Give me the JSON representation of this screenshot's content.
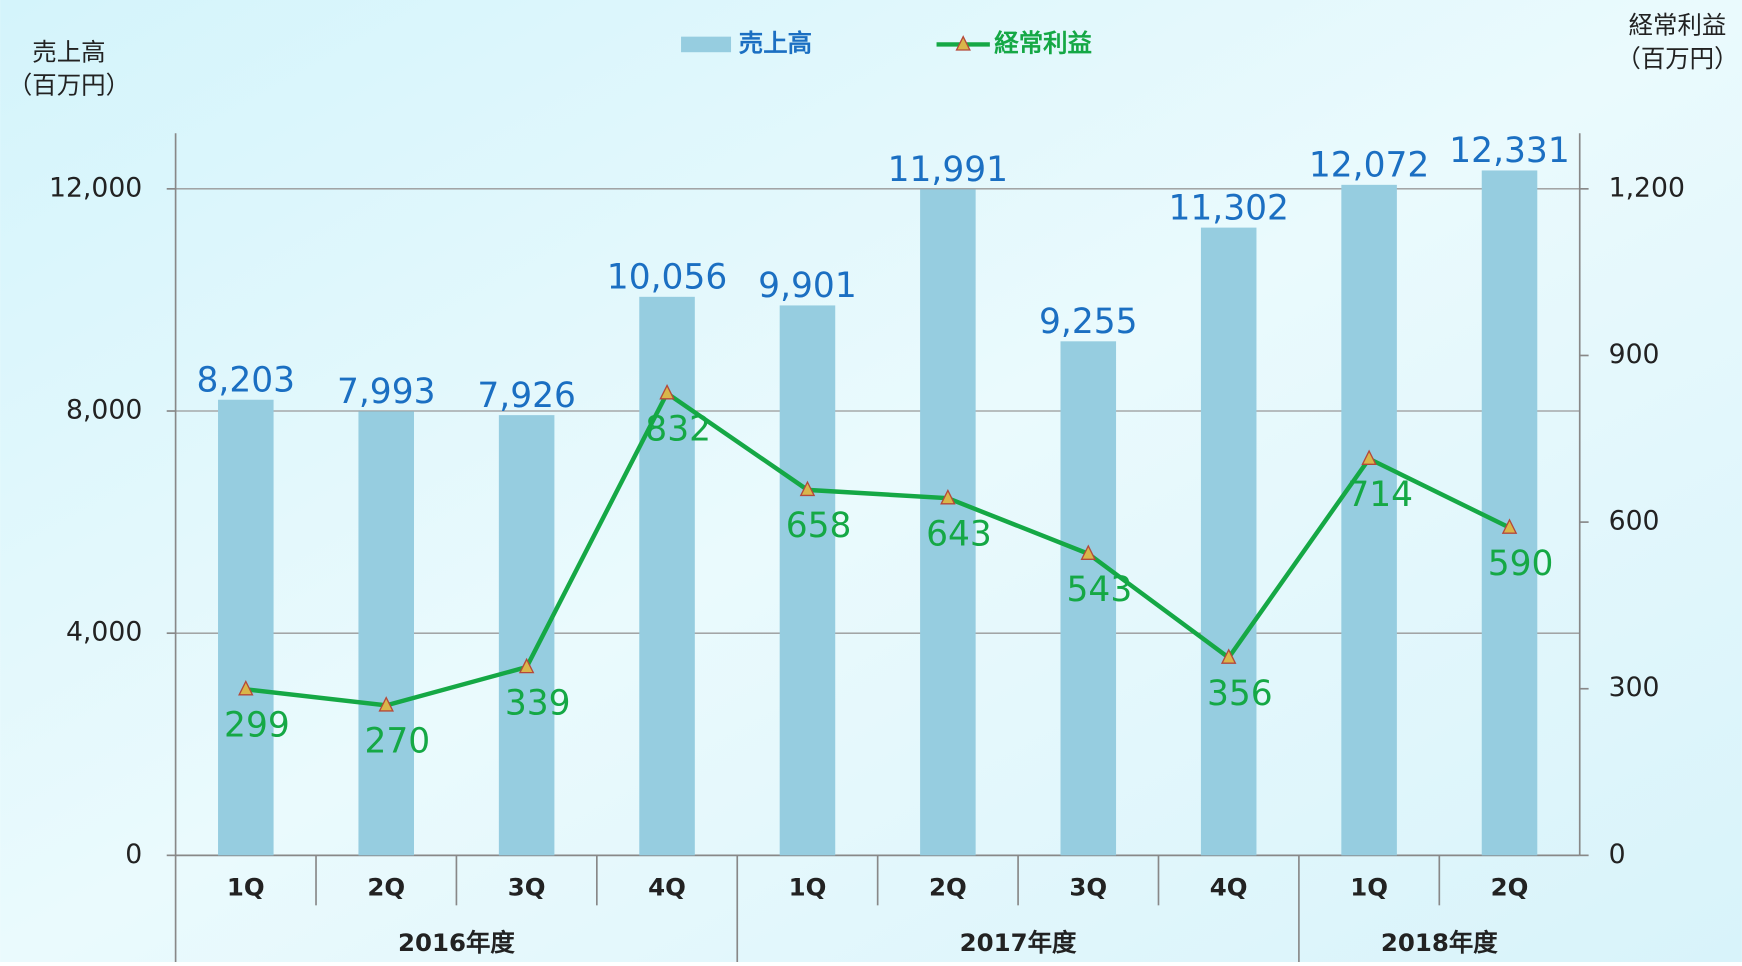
{
  "chart_data": {
    "type": "bar_line",
    "y_label": [
      "売上高",
      "（百万円）"
    ],
    "y2_label": [
      "経常利益",
      "（百万円）"
    ],
    "groups": [
      {
        "name": "2016年度",
        "categories": [
          "1Q",
          "2Q",
          "3Q",
          "4Q"
        ]
      },
      {
        "name": "2017年度",
        "categories": [
          "1Q",
          "2Q",
          "3Q",
          "4Q"
        ]
      },
      {
        "name": "2018年度",
        "categories": [
          "1Q",
          "2Q"
        ]
      }
    ],
    "series": [
      {
        "name": "売上高",
        "type": "bar",
        "color": "#96cde0",
        "label_color": "#1b6fc2",
        "values": [
          8203,
          7993,
          7926,
          10056,
          9901,
          11991,
          9255,
          11302,
          12072,
          12331
        ],
        "value_labels": [
          "8,203",
          "7,993",
          "7,926",
          "10,056",
          "9,901",
          "11,991",
          "9,255",
          "11,302",
          "12,072",
          "12,331"
        ]
      },
      {
        "name": "経常利益",
        "type": "line",
        "axis": "y2",
        "color": "#15a845",
        "marker_color": "#d9b64a",
        "marker_edge": "#b5483a",
        "values": [
          299,
          270,
          339,
          832,
          658,
          643,
          543,
          356,
          714,
          590
        ]
      }
    ],
    "ylim": [
      0,
      13000
    ],
    "yticks": [
      0,
      {
        "value": 4000,
        "label": "4,000"
      },
      {
        "value": 8000,
        "label": "8,000"
      },
      {
        "value": 12000,
        "label": "12,000"
      }
    ],
    "y2lim": [
      0,
      1300
    ],
    "y2ticks": [
      0,
      300,
      600,
      900,
      {
        "value": 1200,
        "label": "1,200"
      }
    ],
    "grid": true
  }
}
